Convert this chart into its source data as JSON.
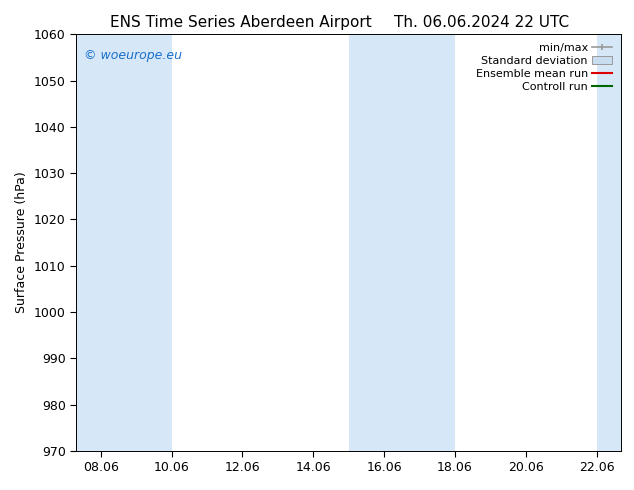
{
  "title_left": "ENS Time Series Aberdeen Airport",
  "title_right": "Th. 06.06.2024 22 UTC",
  "ylabel": "Surface Pressure (hPa)",
  "ylim": [
    970,
    1060
  ],
  "yticks": [
    970,
    980,
    990,
    1000,
    1010,
    1020,
    1030,
    1040,
    1050,
    1060
  ],
  "xtick_labels": [
    "08.06",
    "10.06",
    "12.06",
    "14.06",
    "16.06",
    "18.06",
    "20.06",
    "22.06"
  ],
  "watermark": "© woeurope.eu",
  "watermark_color": "#1a6fcc",
  "bg_color": "#ffffff",
  "plot_bg_color": "#ffffff",
  "shaded_color": "#d6e8f7",
  "legend_labels": [
    "min/max",
    "Standard deviation",
    "Ensemble mean run",
    "Controll run"
  ],
  "legend_minmax_color": "#999999",
  "legend_std_facecolor": "#c8ddef",
  "legend_std_edgecolor": "#999999",
  "legend_ens_color": "#dd0000",
  "legend_ctrl_color": "#006600",
  "title_fontsize": 11,
  "axis_label_fontsize": 9,
  "tick_fontsize": 9,
  "legend_fontsize": 8
}
